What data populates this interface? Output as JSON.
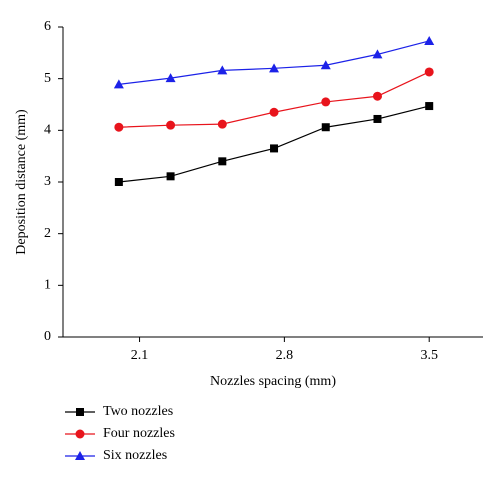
{
  "chart_data": {
    "type": "line",
    "xlabel": "Nozzles spacing (mm)",
    "ylabel": "Deposition distance (mm)",
    "x": [
      2.0,
      2.25,
      2.5,
      2.75,
      3.0,
      3.25,
      3.5
    ],
    "series": [
      {
        "name": "Two nozzles",
        "color": "#000000",
        "marker": "square",
        "values": [
          3.0,
          3.11,
          3.4,
          3.65,
          4.06,
          4.22,
          4.47
        ]
      },
      {
        "name": "Four nozzles",
        "color": "#e8141c",
        "marker": "circle",
        "values": [
          4.06,
          4.1,
          4.12,
          4.35,
          4.55,
          4.66,
          5.13
        ]
      },
      {
        "name": "Six nozzles",
        "color": "#1c22e8",
        "marker": "triangle",
        "values": [
          4.89,
          5.01,
          5.16,
          5.2,
          5.26,
          5.47,
          5.73
        ]
      }
    ],
    "xlim": [
      1.73,
      3.76
    ],
    "xticks": [
      2.1,
      2.8,
      3.5
    ],
    "ylim": [
      0,
      6
    ],
    "yticks": [
      0,
      1,
      2,
      3,
      4,
      5,
      6
    ],
    "legend": "bottom-left"
  }
}
